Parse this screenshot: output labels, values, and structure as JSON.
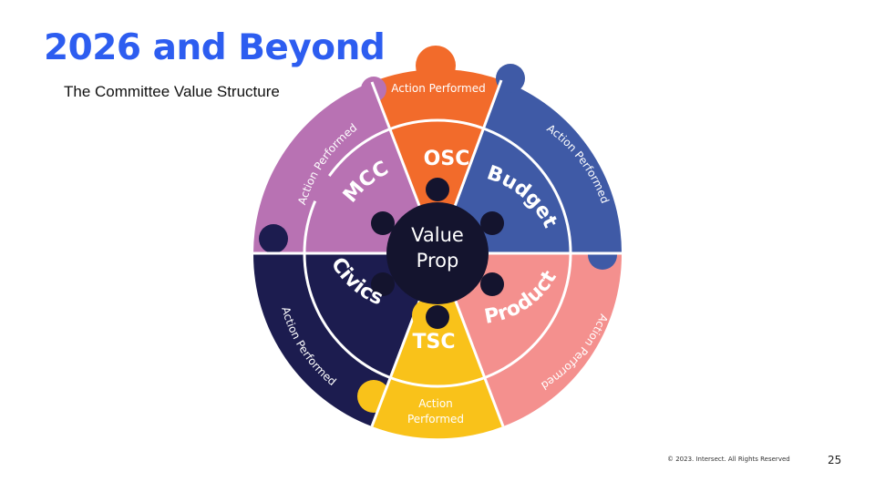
{
  "title": "2026 and Beyond",
  "subtitle": "The Committee Value Structure",
  "footer": {
    "copyright": "© 2023. Intersect. All Rights Reserved",
    "page": "25"
  },
  "center": {
    "line1": "Value",
    "line2": "Prop",
    "color": "#14142e"
  },
  "segments": [
    {
      "id": "osc",
      "inner_label": "OSC",
      "outer_label": "Action Performed",
      "color": "#f26b2b"
    },
    {
      "id": "budget",
      "inner_label": "Budget",
      "outer_label": "Action Performed",
      "color": "#3f5aa6"
    },
    {
      "id": "product",
      "inner_label": "Product",
      "outer_label": "Action Performed",
      "color": "#f4908e"
    },
    {
      "id": "tsc",
      "inner_label": "TSC",
      "outer_label": "Action Performed",
      "outer_line1": "Action",
      "outer_line2": "Performed",
      "color": "#f9c21a"
    },
    {
      "id": "civics",
      "inner_label": "Civics",
      "outer_label": "Action Performed",
      "color": "#1c1c4f"
    },
    {
      "id": "mcc",
      "inner_label": "MCC",
      "outer_label": "Action Performed",
      "color": "#b872b3"
    }
  ]
}
